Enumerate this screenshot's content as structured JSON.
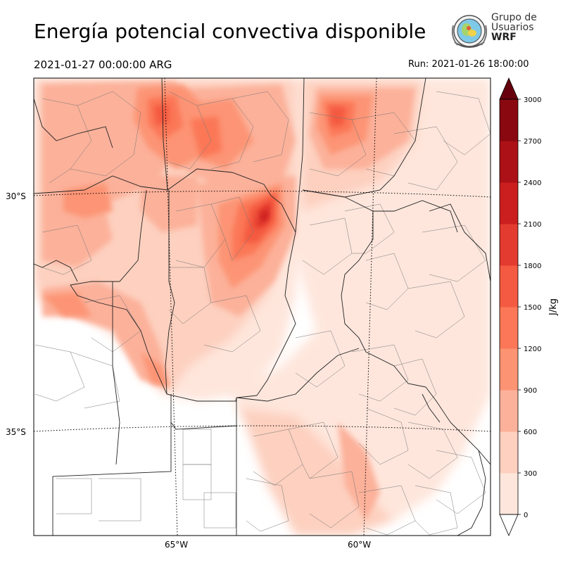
{
  "header": {
    "title": "Energía potencial convectiva disponible",
    "valid_time": "2021-01-27 00:00:00 ARG",
    "run_time": "Run: 2021-01-26 18:00:00"
  },
  "logo": {
    "line1": "Grupo de",
    "line2": "Usuarios",
    "line3": "WRF"
  },
  "map": {
    "lat_labels": [
      "30°S",
      "35°S"
    ],
    "lon_labels": [
      "65°W",
      "60°W"
    ]
  },
  "colorbar": {
    "unit": "J/kg",
    "ticks": [
      "0",
      "300",
      "600",
      "900",
      "1200",
      "1500",
      "1800",
      "2100",
      "2400",
      "2700",
      "3000"
    ],
    "colors": [
      "#fee6dc",
      "#fdd0bf",
      "#fcb19a",
      "#fc9474",
      "#fb7757",
      "#f45a41",
      "#e33b2f",
      "#cb1e1e",
      "#ab1116",
      "#8a0810"
    ],
    "over_color": "#67000d",
    "under_color": "#ffffff"
  },
  "colors": {
    "border": "#222222",
    "gridline": "#000000"
  }
}
